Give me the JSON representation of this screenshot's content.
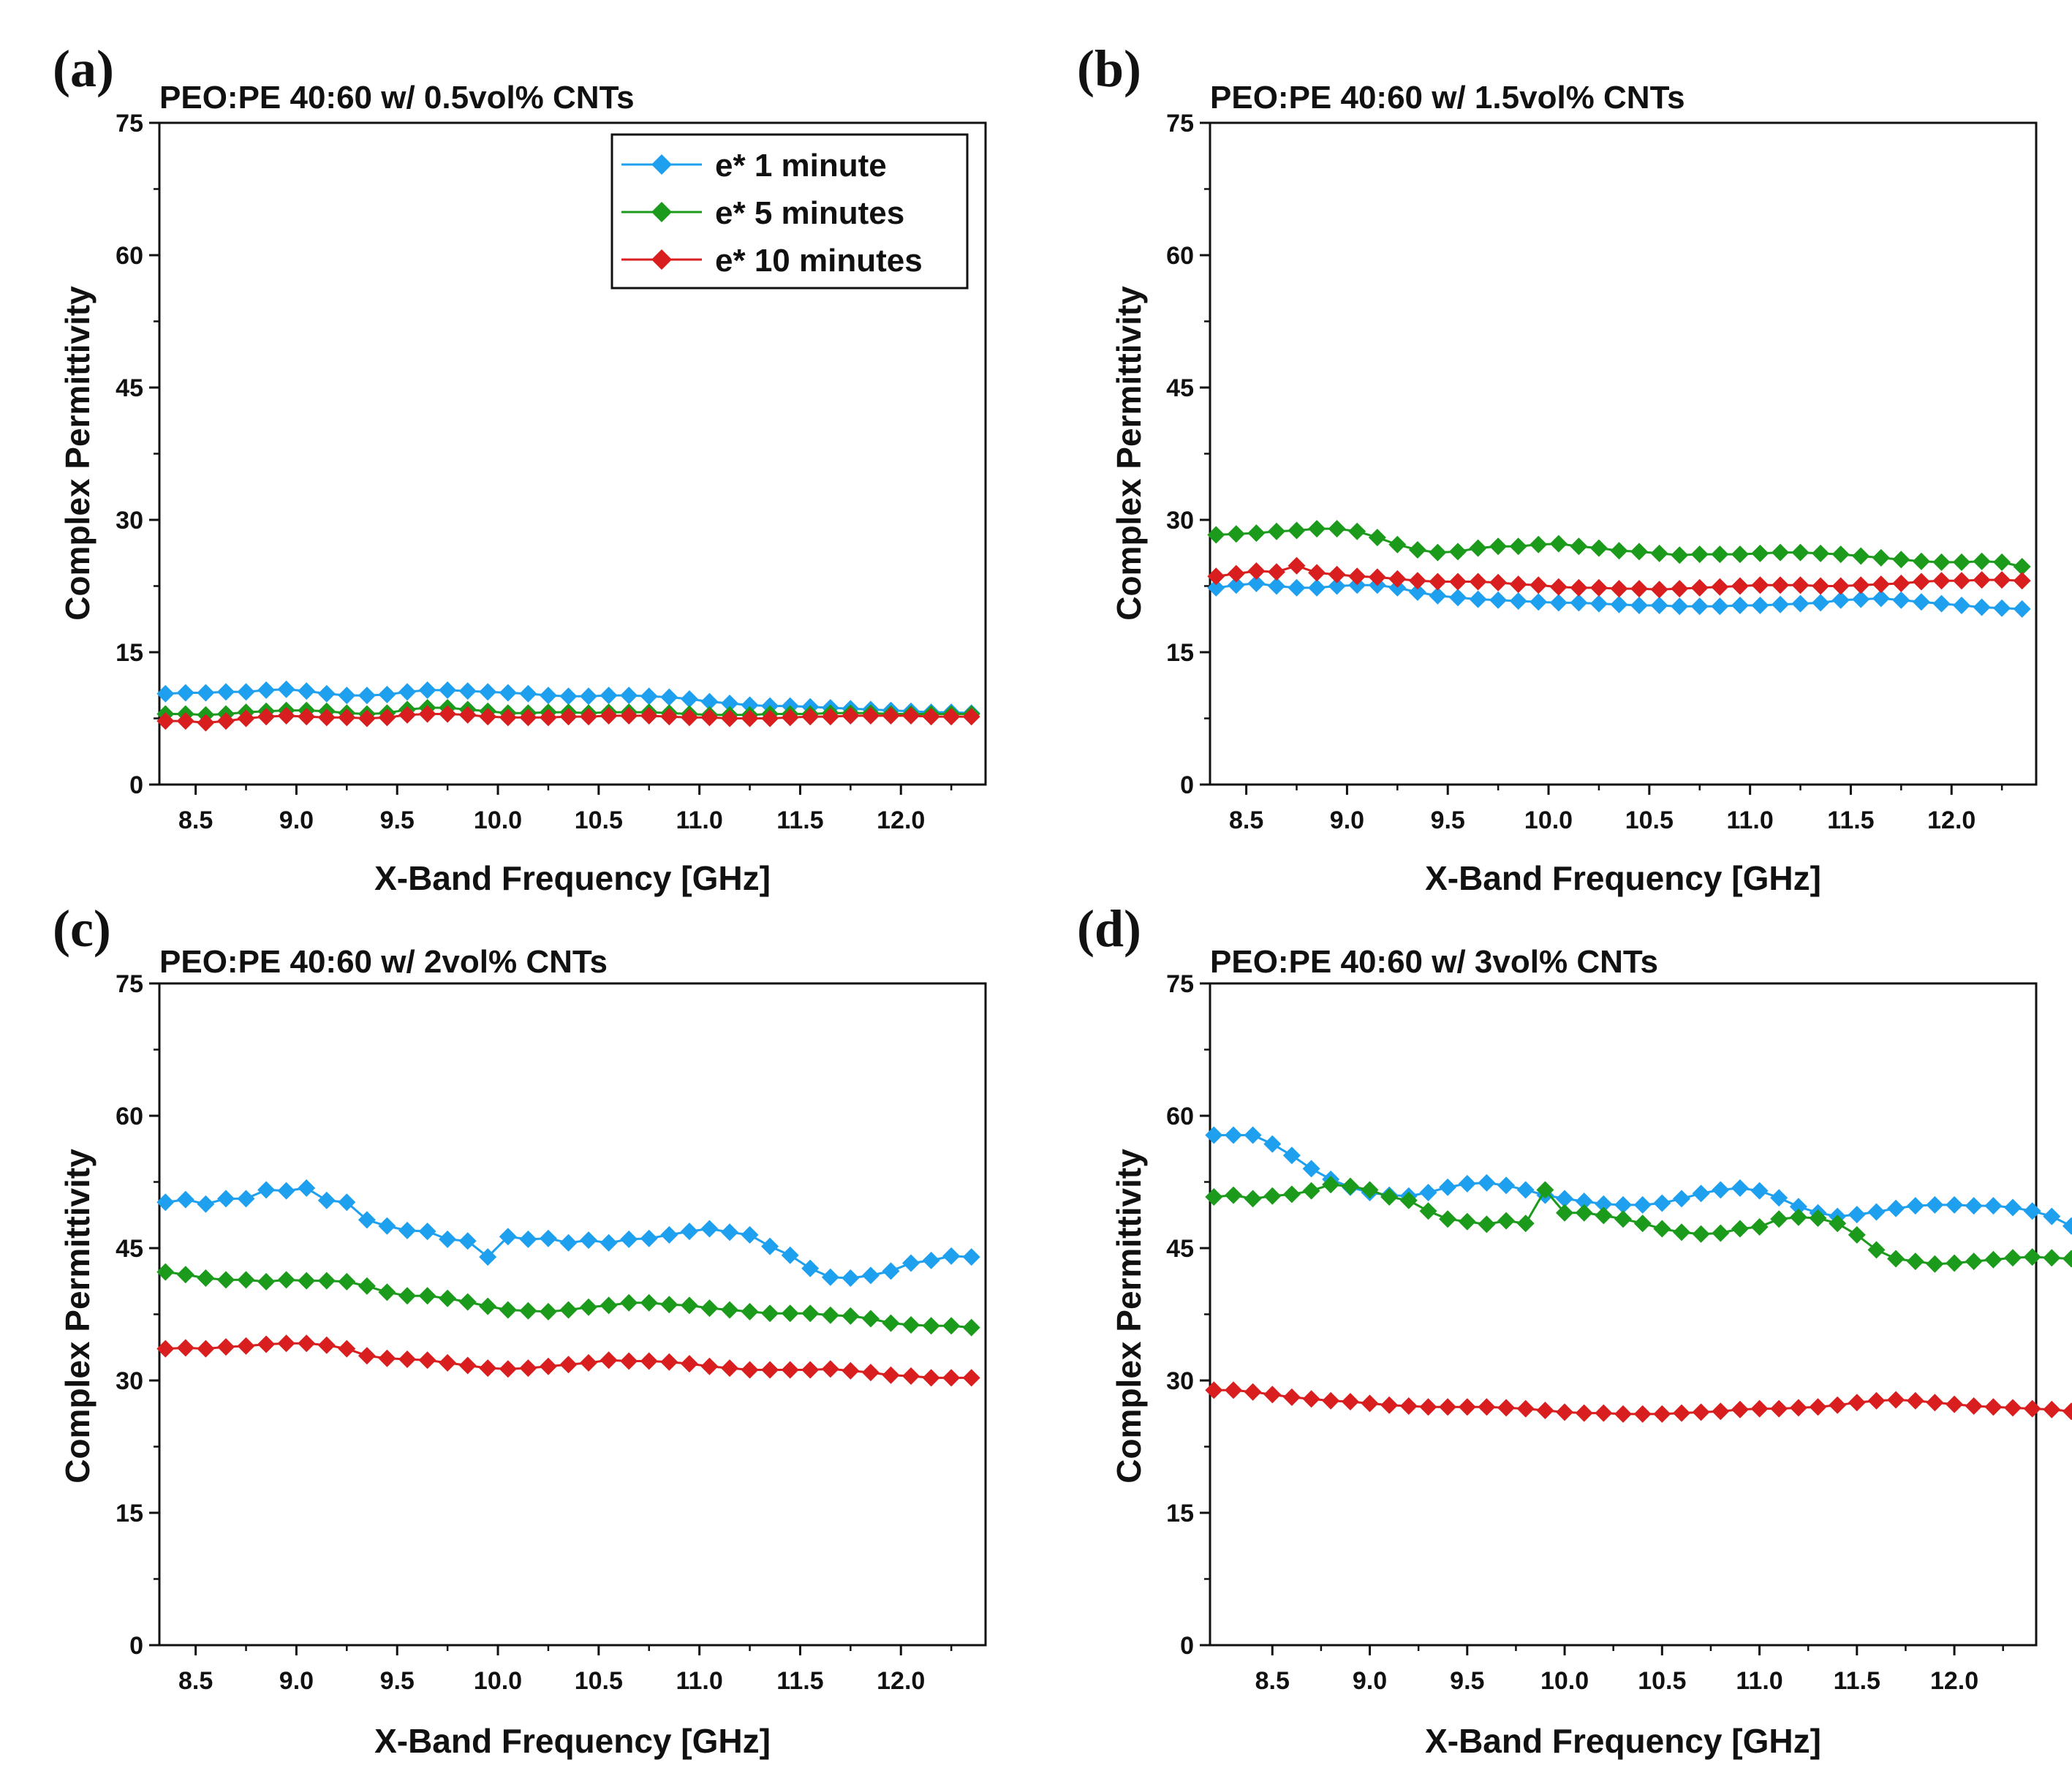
{
  "figure": {
    "series_colors": {
      "e* 1 minute": "#1ea0ef",
      "e* 5 minutes": "#1b9a1b",
      "e* 10 minutes": "#d81e1e"
    }
  },
  "chart_data": [
    {
      "type": "line",
      "panel": "(a)",
      "title": "PEO:PE 40:60 w/ 0.5vol% CNTs",
      "xlabel": "X-Band Frequency [GHz]",
      "ylabel": "Complex Permittivity",
      "xlim": [
        8.32,
        12.42
      ],
      "ylim": [
        0,
        75
      ],
      "xticks": [
        "8.5",
        "9.0",
        "9.5",
        "10.0",
        "10.5",
        "11.0",
        "11.5",
        "12.0"
      ],
      "yticks": [
        "0",
        "15",
        "30",
        "45",
        "60",
        "75"
      ],
      "legend": {
        "position": "top-right",
        "entries": [
          "e* 1 minute",
          "e* 5 minutes",
          "e* 10 minutes"
        ]
      },
      "x_start": 8.35,
      "x_step": 0.1,
      "series": [
        {
          "name": "e* 1 minute",
          "color": "#1ea0ef",
          "values": [
            10.3,
            10.4,
            10.4,
            10.5,
            10.5,
            10.7,
            10.8,
            10.6,
            10.3,
            10.1,
            10.1,
            10.2,
            10.5,
            10.7,
            10.7,
            10.6,
            10.5,
            10.4,
            10.3,
            10.1,
            10.0,
            10.0,
            10.1,
            10.1,
            10.0,
            9.9,
            9.7,
            9.4,
            9.2,
            9.0,
            8.9,
            8.9,
            8.8,
            8.7,
            8.6,
            8.5,
            8.4,
            8.3,
            8.2,
            8.2,
            8.1
          ]
        },
        {
          "name": "e* 5 minutes",
          "color": "#1b9a1b",
          "values": [
            8.0,
            8.0,
            7.9,
            8.0,
            8.2,
            8.3,
            8.4,
            8.4,
            8.3,
            8.1,
            8.0,
            8.1,
            8.5,
            8.7,
            8.7,
            8.5,
            8.3,
            8.1,
            8.1,
            8.2,
            8.2,
            8.1,
            8.2,
            8.2,
            8.2,
            8.1,
            8.0,
            7.9,
            7.9,
            7.9,
            8.0,
            8.0,
            8.0,
            8.1,
            8.1,
            8.1,
            8.0,
            8.0,
            8.0,
            8.0,
            8.0
          ]
        },
        {
          "name": "e* 10 minutes",
          "color": "#d81e1e",
          "values": [
            7.2,
            7.2,
            7.0,
            7.2,
            7.5,
            7.7,
            7.8,
            7.7,
            7.6,
            7.6,
            7.5,
            7.6,
            7.9,
            8.0,
            8.0,
            7.9,
            7.7,
            7.6,
            7.6,
            7.6,
            7.7,
            7.7,
            7.8,
            7.8,
            7.8,
            7.7,
            7.6,
            7.6,
            7.5,
            7.5,
            7.5,
            7.6,
            7.7,
            7.7,
            7.8,
            7.8,
            7.8,
            7.8,
            7.7,
            7.7,
            7.7
          ]
        }
      ]
    },
    {
      "type": "line",
      "panel": "(b)",
      "title": "PEO:PE 40:60 w/ 1.5vol% CNTs",
      "xlabel": "X-Band Frequency [GHz]",
      "ylabel": "Complex Permittivity",
      "xlim": [
        8.32,
        12.42
      ],
      "ylim": [
        0,
        75
      ],
      "xticks": [
        "8.5",
        "9.0",
        "9.5",
        "10.0",
        "10.5",
        "11.0",
        "11.5",
        "12.0"
      ],
      "yticks": [
        "0",
        "15",
        "30",
        "45",
        "60",
        "75"
      ],
      "x_start": 8.35,
      "x_step": 0.1,
      "series": [
        {
          "name": "e* 1 minute",
          "color": "#1ea0ef",
          "values": [
            22.3,
            22.6,
            22.8,
            22.5,
            22.3,
            22.3,
            22.5,
            22.6,
            22.6,
            22.3,
            21.8,
            21.4,
            21.2,
            21.0,
            20.9,
            20.8,
            20.7,
            20.6,
            20.6,
            20.5,
            20.4,
            20.3,
            20.3,
            20.2,
            20.2,
            20.2,
            20.3,
            20.3,
            20.4,
            20.5,
            20.6,
            20.9,
            21.0,
            21.1,
            20.9,
            20.7,
            20.5,
            20.3,
            20.1,
            20.0,
            19.9
          ]
        },
        {
          "name": "e* 5 minutes",
          "color": "#1b9a1b",
          "values": [
            28.3,
            28.4,
            28.5,
            28.7,
            28.8,
            29.0,
            29.0,
            28.7,
            28.0,
            27.2,
            26.6,
            26.3,
            26.4,
            26.8,
            27.0,
            27.0,
            27.2,
            27.3,
            27.0,
            26.8,
            26.5,
            26.4,
            26.2,
            26.0,
            26.1,
            26.1,
            26.1,
            26.2,
            26.3,
            26.3,
            26.2,
            26.1,
            25.9,
            25.7,
            25.5,
            25.3,
            25.2,
            25.2,
            25.3,
            25.2,
            24.7
          ]
        },
        {
          "name": "e* 10 minutes",
          "color": "#d81e1e",
          "values": [
            23.6,
            23.9,
            24.2,
            24.1,
            24.8,
            24.0,
            23.8,
            23.6,
            23.5,
            23.3,
            23.1,
            23.0,
            23.0,
            23.0,
            22.9,
            22.7,
            22.6,
            22.4,
            22.3,
            22.3,
            22.2,
            22.2,
            22.1,
            22.2,
            22.3,
            22.4,
            22.5,
            22.6,
            22.6,
            22.6,
            22.5,
            22.5,
            22.6,
            22.7,
            22.8,
            23.0,
            23.1,
            23.1,
            23.2,
            23.2,
            23.1
          ]
        }
      ]
    },
    {
      "type": "line",
      "panel": "(c)",
      "title": "PEO:PE 40:60 w/ 2vol% CNTs",
      "xlabel": "X-Band Frequency [GHz]",
      "ylabel": "Complex Permittivity",
      "xlim": [
        8.32,
        12.42
      ],
      "ylim": [
        0,
        75
      ],
      "xticks": [
        "8.5",
        "9.0",
        "9.5",
        "10.0",
        "10.5",
        "11.0",
        "11.5",
        "12.0"
      ],
      "yticks": [
        "0",
        "15",
        "30",
        "45",
        "60",
        "75"
      ],
      "x_start": 8.35,
      "x_step": 0.1,
      "series": [
        {
          "name": "e* 1 minute",
          "color": "#1ea0ef",
          "values": [
            50.2,
            50.5,
            50.0,
            50.6,
            50.6,
            51.6,
            51.5,
            51.8,
            50.4,
            50.2,
            48.2,
            47.5,
            47.0,
            46.9,
            46.0,
            45.8,
            44.0,
            46.3,
            46.0,
            46.1,
            45.6,
            45.9,
            45.6,
            46.0,
            46.1,
            46.5,
            46.9,
            47.2,
            46.8,
            46.5,
            45.2,
            44.2,
            42.7,
            41.7,
            41.6,
            41.9,
            42.4,
            43.3,
            43.6,
            44.1,
            44.0
          ]
        },
        {
          "name": "e* 5 minutes",
          "color": "#1b9a1b",
          "values": [
            42.3,
            42.0,
            41.6,
            41.4,
            41.4,
            41.2,
            41.4,
            41.3,
            41.3,
            41.2,
            40.7,
            40.0,
            39.6,
            39.6,
            39.3,
            38.9,
            38.4,
            38.0,
            37.9,
            37.8,
            38.0,
            38.3,
            38.5,
            38.8,
            38.8,
            38.6,
            38.5,
            38.2,
            38.0,
            37.8,
            37.6,
            37.6,
            37.6,
            37.4,
            37.3,
            37.0,
            36.5,
            36.3,
            36.2,
            36.2,
            36.0
          ]
        },
        {
          "name": "e* 10 minutes",
          "color": "#d81e1e",
          "values": [
            33.6,
            33.7,
            33.6,
            33.8,
            33.9,
            34.1,
            34.2,
            34.2,
            34.0,
            33.6,
            32.8,
            32.5,
            32.4,
            32.3,
            32.0,
            31.7,
            31.4,
            31.3,
            31.4,
            31.6,
            31.8,
            32.0,
            32.3,
            32.2,
            32.2,
            32.1,
            31.9,
            31.6,
            31.4,
            31.2,
            31.2,
            31.2,
            31.2,
            31.3,
            31.1,
            30.9,
            30.6,
            30.5,
            30.3,
            30.3,
            30.3
          ]
        }
      ]
    },
    {
      "type": "line",
      "panel": "(d)",
      "title": "PEO:PE 40:60 w/ 3vol% CNTs",
      "xlabel": "X-Band Frequency [GHz]",
      "ylabel": "Complex Permittivity",
      "xlim": [
        8.18,
        12.42
      ],
      "ylim": [
        0,
        75
      ],
      "xticks": [
        "8.5",
        "9.0",
        "9.5",
        "10.0",
        "10.5",
        "11.0",
        "11.5",
        "12.0"
      ],
      "yticks": [
        "0",
        "15",
        "30",
        "45",
        "60",
        "75"
      ],
      "x_start": 8.2,
      "x_step": 0.1,
      "series": [
        {
          "name": "e* 1 minute",
          "color": "#1ea0ef",
          "values": [
            57.8,
            57.8,
            57.8,
            56.8,
            55.5,
            54.0,
            52.8,
            51.9,
            51.3,
            51.0,
            50.9,
            51.3,
            51.9,
            52.3,
            52.4,
            52.1,
            51.6,
            51.0,
            50.6,
            50.3,
            50.0,
            49.9,
            49.9,
            50.1,
            50.6,
            51.2,
            51.6,
            51.8,
            51.5,
            50.7,
            49.7,
            49.0,
            48.6,
            48.8,
            49.1,
            49.5,
            49.8,
            49.9,
            49.9,
            49.8,
            49.8,
            49.6,
            49.2,
            48.6,
            47.5
          ]
        },
        {
          "name": "e* 5 minutes",
          "color": "#1b9a1b",
          "values": [
            50.8,
            51.0,
            50.6,
            50.9,
            51.1,
            51.5,
            52.2,
            52.0,
            51.6,
            50.8,
            50.4,
            49.2,
            48.3,
            48.0,
            47.7,
            48.1,
            47.8,
            51.6,
            49.0,
            49.0,
            48.7,
            48.3,
            47.8,
            47.2,
            46.8,
            46.6,
            46.7,
            47.2,
            47.4,
            48.3,
            48.5,
            48.4,
            47.8,
            46.5,
            44.8,
            43.8,
            43.5,
            43.2,
            43.3,
            43.5,
            43.7,
            43.9,
            44.0,
            43.9,
            43.8
          ]
        },
        {
          "name": "e* 10 minutes",
          "color": "#d81e1e",
          "values": [
            28.9,
            28.9,
            28.7,
            28.4,
            28.1,
            27.9,
            27.7,
            27.6,
            27.4,
            27.2,
            27.1,
            27.0,
            27.0,
            27.0,
            27.0,
            26.9,
            26.8,
            26.6,
            26.4,
            26.3,
            26.3,
            26.2,
            26.2,
            26.2,
            26.3,
            26.4,
            26.5,
            26.7,
            26.8,
            26.8,
            26.9,
            27.0,
            27.2,
            27.5,
            27.7,
            27.8,
            27.7,
            27.5,
            27.3,
            27.1,
            27.0,
            26.9,
            26.8,
            26.7,
            26.5
          ]
        }
      ]
    }
  ]
}
